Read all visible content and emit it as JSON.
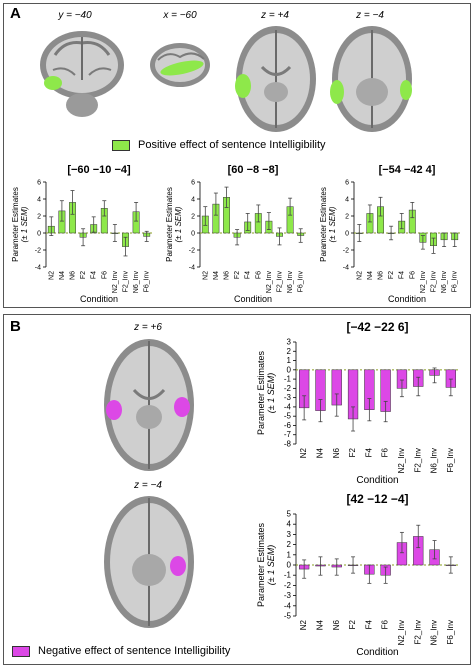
{
  "panel_a": {
    "letter": "A",
    "slices": [
      {
        "label": "y = −40",
        "view": "coronal"
      },
      {
        "label": "x = −60",
        "view": "sagittal"
      },
      {
        "label": "z = +4",
        "view": "axial"
      },
      {
        "label": "z = −4",
        "view": "axial"
      }
    ],
    "legend": {
      "label": "Positive effect of sentence Intelligibility",
      "color": "#8ee84a"
    }
  },
  "panel_b": {
    "letter": "B",
    "slices": [
      {
        "label": "z = +6",
        "view": "axial"
      },
      {
        "label": "z = −4",
        "view": "axial"
      }
    ],
    "legend": {
      "label": "Negative effect of sentence Intelligibility",
      "color": "#dc48e6"
    }
  },
  "colors": {
    "positive": "#8ee84a",
    "negative": "#dc48e6",
    "bar_stroke": "#333333",
    "zero_line": "#8aa020"
  },
  "chart_data": [
    {
      "type": "bar",
      "id": "a1",
      "title": "[−60 −10 −4]",
      "ylabel": "Parameter Estimates",
      "ylabel2": "(± 1 SEM)",
      "xlabel": "Condition",
      "categories": [
        "N2",
        "N4",
        "N6",
        "F2",
        "F4",
        "F6",
        "N2_Inv",
        "F2_Inv",
        "N6_Inv",
        "F6_Inv"
      ],
      "values": [
        0.8,
        2.6,
        3.6,
        -0.5,
        1.0,
        2.9,
        0.0,
        -1.6,
        2.5,
        -0.4
      ],
      "errors": [
        1.1,
        1.2,
        1.4,
        1.0,
        0.9,
        0.9,
        1.0,
        1.1,
        1.1,
        0.6
      ],
      "ylim": [
        -4,
        6
      ],
      "yticks": [
        -4,
        -2,
        0,
        2,
        4,
        6
      ],
      "color": "#8ee84a"
    },
    {
      "type": "bar",
      "id": "a2",
      "title": "[60 −8 −8]",
      "ylabel": "Parameter Estimates",
      "ylabel2": "(± 1 SEM)",
      "xlabel": "Condition",
      "categories": [
        "N2",
        "N4",
        "N6",
        "F2",
        "F4",
        "F6",
        "N2_Inv",
        "F2_Inv",
        "N6_Inv",
        "F6_Inv"
      ],
      "values": [
        2.0,
        3.4,
        4.2,
        -0.5,
        1.3,
        2.3,
        1.4,
        -0.4,
        3.1,
        -0.3
      ],
      "errors": [
        1.1,
        1.3,
        1.2,
        0.9,
        1.0,
        1.0,
        1.0,
        1.0,
        1.0,
        0.8
      ],
      "ylim": [
        -4,
        6
      ],
      "yticks": [
        -4,
        -2,
        0,
        2,
        4,
        6
      ],
      "color": "#8ee84a"
    },
    {
      "type": "bar",
      "id": "a3",
      "title": "[−54 −42 4]",
      "ylabel": "Parameter Estimates",
      "ylabel2": "(± 1 SEM)",
      "xlabel": "Condition",
      "categories": [
        "N2",
        "N4",
        "N6",
        "F2",
        "F4",
        "F6",
        "N2_Inv",
        "F2_Inv",
        "N6_Inv",
        "F6_Inv"
      ],
      "values": [
        0.0,
        2.3,
        3.1,
        0.0,
        1.4,
        2.7,
        -1.1,
        -1.5,
        -0.8,
        -0.8
      ],
      "errors": [
        1.0,
        1.0,
        1.1,
        0.8,
        0.9,
        0.9,
        0.8,
        0.9,
        0.8,
        0.8
      ],
      "ylim": [
        -4,
        6
      ],
      "yticks": [
        -4,
        -2,
        0,
        2,
        4,
        6
      ],
      "color": "#8ee84a"
    },
    {
      "type": "bar",
      "id": "b1",
      "title": "[−42 −22 6]",
      "ylabel": "Parameter Estimates",
      "ylabel2": "(± 1 SEM)",
      "xlabel": "Condition",
      "categories": [
        "N2",
        "N4",
        "N6",
        "F2",
        "F4",
        "F6",
        "N2_Inv",
        "F2_Inv",
        "N6_Inv",
        "F6_Inv"
      ],
      "values": [
        -4.1,
        -4.4,
        -3.8,
        -5.3,
        -4.3,
        -4.5,
        -2.0,
        -1.8,
        -0.6,
        -1.9
      ],
      "errors": [
        1.3,
        1.2,
        1.2,
        1.3,
        1.2,
        1.1,
        0.9,
        1.0,
        0.8,
        0.9
      ],
      "ylim": [
        -8,
        3
      ],
      "yticks": [
        -8,
        -7,
        -6,
        -5,
        -4,
        -3,
        -2,
        -1,
        0,
        1,
        2,
        3
      ],
      "color": "#dc48e6"
    },
    {
      "type": "bar",
      "id": "b2",
      "title": "[42 −12 −4]",
      "ylabel": "Parameter Estimates",
      "ylabel2": "(± 1 SEM)",
      "xlabel": "Condition",
      "categories": [
        "N2",
        "N4",
        "N6",
        "F2",
        "F4",
        "F6",
        "N2_Inv",
        "F2_Inv",
        "N6_Inv",
        "F6_Inv"
      ],
      "values": [
        -0.4,
        -0.1,
        -0.2,
        0.0,
        -0.9,
        -1.0,
        2.2,
        2.8,
        1.5,
        0.0
      ],
      "errors": [
        0.9,
        0.9,
        0.8,
        0.8,
        0.9,
        0.8,
        1.0,
        1.1,
        0.9,
        0.8
      ],
      "ylim": [
        -5,
        5
      ],
      "yticks": [
        -5,
        -4,
        -3,
        -2,
        -1,
        0,
        1,
        2,
        3,
        4,
        5
      ],
      "color": "#dc48e6"
    }
  ]
}
